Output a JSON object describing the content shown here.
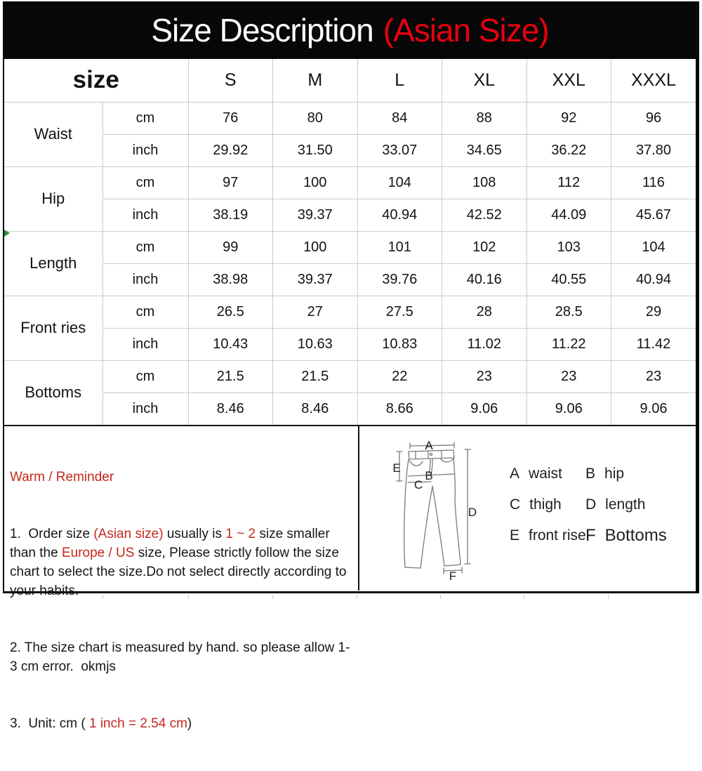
{
  "title": {
    "main": "Size Description",
    "accent": "(Asian Size)"
  },
  "colors": {
    "accent_red": "#e8000f",
    "value_red": "#b82525",
    "note_red": "#c5281c",
    "marker_green": "#2e8b2e"
  },
  "table": {
    "corner_label": "size",
    "unit_cm": "cm",
    "unit_inch": "inch",
    "sizes": [
      "S",
      "M",
      "L",
      "XL",
      "XXL",
      "XXXL"
    ],
    "rows": [
      {
        "label": "Waist",
        "cm": [
          "76",
          "80",
          "84",
          "88",
          "92",
          "96"
        ],
        "inch": [
          "29.92",
          "31.50",
          "33.07",
          "34.65",
          "36.22",
          "37.80"
        ]
      },
      {
        "label": "Hip",
        "cm": [
          "97",
          "100",
          "104",
          "108",
          "112",
          "116"
        ],
        "inch": [
          "38.19",
          "39.37",
          "40.94",
          "42.52",
          "44.09",
          "45.67"
        ]
      },
      {
        "label": "Length",
        "cm": [
          "99",
          "100",
          "101",
          "102",
          "103",
          "104"
        ],
        "inch": [
          "38.98",
          "39.37",
          "39.76",
          "40.16",
          "40.55",
          "40.94"
        ]
      },
      {
        "label": "Front ries",
        "cm": [
          "26.5",
          "27",
          "27.5",
          "28",
          "28.5",
          "29"
        ],
        "inch": [
          "10.43",
          "10.63",
          "10.83",
          "11.02",
          "11.22",
          "11.42"
        ]
      },
      {
        "label": "Bottoms",
        "cm": [
          "21.5",
          "21.5",
          "22",
          "23",
          "23",
          "23"
        ],
        "inch": [
          "8.46",
          "8.46",
          "8.66",
          "9.06",
          "9.06",
          "9.06"
        ]
      }
    ]
  },
  "notes": {
    "heading": "Warm / Reminder",
    "items": [
      {
        "segments": [
          {
            "t": "1.  Order size "
          },
          {
            "t": "(Asian size)",
            "red": true
          },
          {
            "t": " usually is "
          },
          {
            "t": "1 ~ 2",
            "red": true
          },
          {
            "t": " size smaller than the "
          },
          {
            "t": "Europe / US",
            "red": true
          },
          {
            "t": " size, Please strictly follow the size chart to select the size.Do not select directly according to your habits."
          }
        ]
      },
      {
        "segments": [
          {
            "t": "2. The size chart is measured by hand. so please allow 1-3 cm error.  okmjs"
          }
        ]
      },
      {
        "segments": [
          {
            "t": "3.  Unit: cm ( "
          },
          {
            "t": "1 inch = 2.54 cm",
            "red": true
          },
          {
            "t": ")"
          }
        ]
      }
    ]
  },
  "diagram": {
    "letters": {
      "a": "A",
      "b": "B",
      "c": "C",
      "d": "D",
      "e": "E",
      "f": "F"
    },
    "legend": [
      {
        "key": "A",
        "label": "waist"
      },
      {
        "key": "B",
        "label": "hip"
      },
      {
        "key": "C",
        "label": "thigh"
      },
      {
        "key": "D",
        "label": "length"
      },
      {
        "key": "E",
        "label": "front rise"
      },
      {
        "key": "F",
        "label": "Bottoms"
      }
    ]
  }
}
